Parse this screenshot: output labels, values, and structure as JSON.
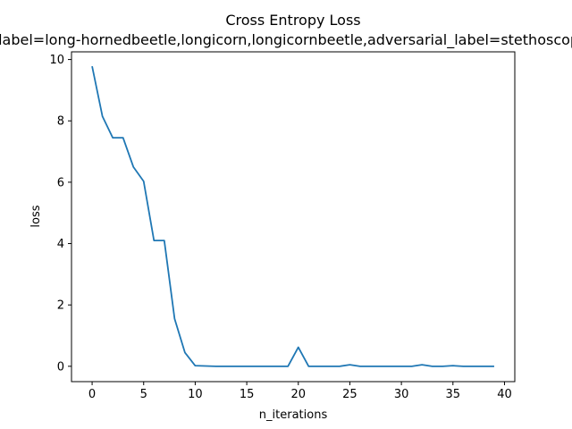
{
  "chart_data": {
    "type": "line",
    "title": "Cross Entropy Loss",
    "subtitle": "label=long-hornedbeetle,longicorn,longicornbeetle,adversarial_label=stethoscope",
    "xlabel": "n_iterations",
    "ylabel": "loss",
    "xlim": [
      -2,
      41
    ],
    "ylim": [
      -0.5,
      10.25
    ],
    "xticks": [
      0,
      5,
      10,
      15,
      20,
      25,
      30,
      35,
      40
    ],
    "yticks": [
      0,
      2,
      4,
      6,
      8,
      10
    ],
    "xtick_labels": [
      "0",
      "5",
      "10",
      "15",
      "20",
      "25",
      "30",
      "35",
      "40"
    ],
    "ytick_labels": [
      "0",
      "2",
      "4",
      "6",
      "8",
      "10"
    ],
    "grid": false,
    "series": [
      {
        "color": "#1f77b4",
        "x": [
          0,
          1,
          2,
          3,
          4,
          5,
          6,
          7,
          8,
          9,
          10,
          11,
          12,
          13,
          14,
          15,
          16,
          17,
          18,
          19,
          20,
          21,
          22,
          23,
          24,
          25,
          26,
          27,
          28,
          29,
          30,
          31,
          32,
          33,
          34,
          35,
          36,
          37,
          38,
          39
        ],
        "values": [
          9.78,
          8.15,
          7.45,
          7.45,
          6.5,
          6.03,
          4.1,
          4.1,
          1.55,
          0.45,
          0.02,
          0.01,
          0.0,
          0.0,
          0.0,
          0.0,
          0.0,
          0.0,
          0.0,
          0.0,
          0.62,
          0.0,
          0.0,
          0.0,
          0.0,
          0.05,
          0.0,
          0.0,
          0.0,
          0.0,
          0.0,
          0.0,
          0.05,
          0.0,
          0.0,
          0.02,
          0.0,
          0.0,
          0.0,
          0.0
        ]
      }
    ]
  }
}
